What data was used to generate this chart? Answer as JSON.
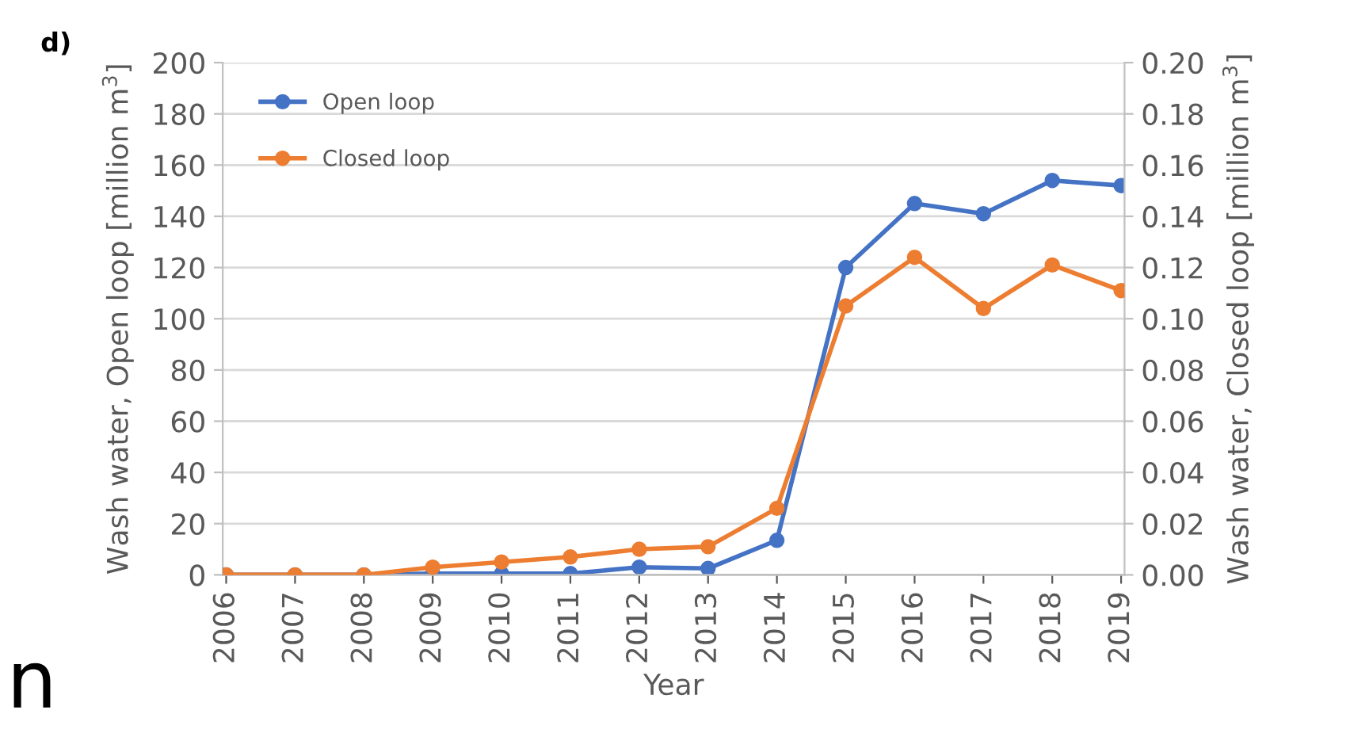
{
  "chart_data": {
    "type": "line",
    "xlabel": "Year",
    "ylabel": "Wash water, Open loop [million m$^{3}$]",
    "y2label": "Wash water, Closed loop [million m$^{3}$]",
    "annotations": [
      "d)",
      "n"
    ],
    "categories": [
      "2006",
      "2007",
      "2008",
      "2009",
      "2010",
      "2011",
      "2012",
      "2013",
      "2014",
      "2015",
      "2016",
      "2017",
      "2018",
      "2019"
    ],
    "series": [
      {
        "name": "Open loop",
        "color": "#4472c4",
        "values": [
          0,
          0,
          0,
          0.5,
          0.5,
          0.5,
          3,
          2.5,
          13.5,
          120,
          145,
          141,
          154,
          152
        ]
      },
      {
        "name": "Closed loop",
        "color": "#ed7d31",
        "axis": "y2",
        "values": [
          0,
          0,
          0,
          0.003,
          0.005,
          0.007,
          0.01,
          0.011,
          0.026,
          0.105,
          0.124,
          0.104,
          0.121,
          0.111
        ]
      }
    ],
    "ylim": [
      0,
      200
    ],
    "yticks": [
      0,
      20,
      40,
      60,
      80,
      100,
      120,
      140,
      160,
      180,
      200
    ],
    "y2lim": [
      0,
      0.2
    ],
    "y2ticks": [
      {
        "value": 0,
        "label": "0.00"
      },
      {
        "value": 0.02,
        "label": "0.02"
      },
      {
        "value": 0.04,
        "label": "0.04"
      },
      {
        "value": 0.06,
        "label": "0.06"
      },
      {
        "value": 0.08,
        "label": "0.08"
      },
      {
        "value": 0.1,
        "label": "0.10"
      },
      {
        "value": 0.12,
        "label": "0.12"
      },
      {
        "value": 0.14,
        "label": "0.14"
      },
      {
        "value": 0.16,
        "label": "0.16"
      },
      {
        "value": 0.18,
        "label": "0.18"
      },
      {
        "value": 0.2,
        "label": "0.20"
      }
    ],
    "grid": "y",
    "legend": "top left",
    "marker": "circle",
    "line_style": "solid"
  }
}
